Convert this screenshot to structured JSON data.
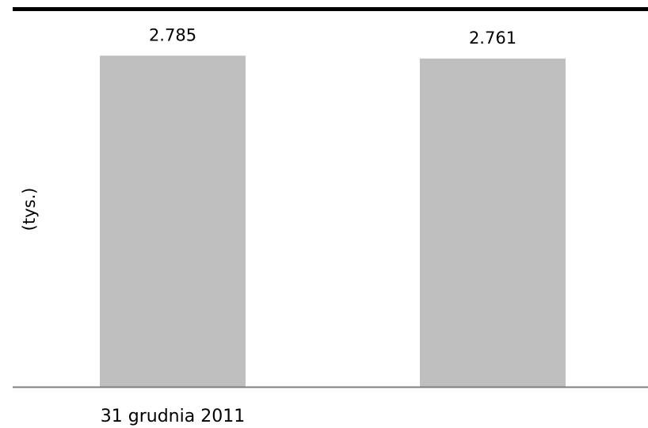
{
  "chart_data": {
    "type": "bar",
    "title": "",
    "xlabel": "",
    "ylabel": "(tys.)",
    "categories": [
      "31 grudnia 2011",
      ""
    ],
    "values": [
      2.785,
      2.761
    ],
    "data_labels": [
      "2.785",
      "2.761"
    ],
    "ylim": [
      0,
      2.9
    ],
    "grid": false,
    "legend": "none",
    "colors": {
      "bar": "#bfbfbf",
      "top_rule": "#000000",
      "baseline": "#808080"
    }
  }
}
